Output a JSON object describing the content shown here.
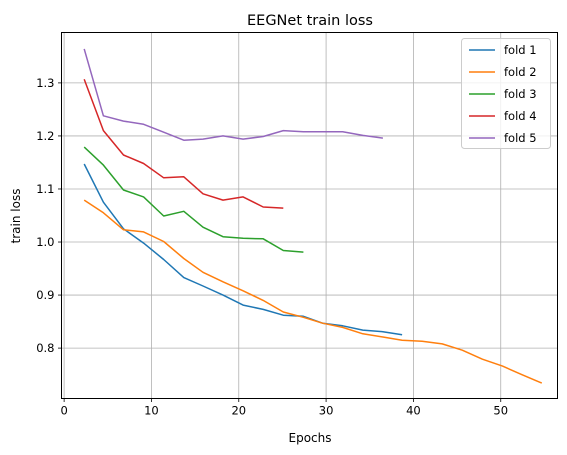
{
  "chart_data": {
    "type": "line",
    "title": "EEGNet train loss",
    "xlabel": "Epochs",
    "ylabel": "train loss",
    "xlim": [
      -0.3,
      56.5
    ],
    "ylim": [
      0.705,
      1.395
    ],
    "xticks": [
      0,
      10,
      20,
      30,
      40,
      50
    ],
    "xtick_labels": [
      "0",
      "10",
      "20",
      "30",
      "40",
      "50"
    ],
    "yticks": [
      0.8,
      0.9,
      1.0,
      1.1,
      1.2,
      1.3
    ],
    "ytick_labels": [
      "0.8",
      "0.9",
      "1.0",
      "1.1",
      "1.2",
      "1.3"
    ],
    "grid": true,
    "legend_position": "top-right",
    "series": [
      {
        "name": "fold 1",
        "color": "#1f77b4",
        "x": [
          2.3,
          4.5,
          6.8,
          9.1,
          11.4,
          13.7,
          15.9,
          18.2,
          20.5,
          22.8,
          25.1,
          27.4,
          29.6,
          31.9,
          34.2,
          36.5,
          38.7
        ],
        "y": [
          1.147,
          1.075,
          1.025,
          0.998,
          0.967,
          0.933,
          0.917,
          0.9,
          0.881,
          0.873,
          0.862,
          0.86,
          0.847,
          0.842,
          0.834,
          0.831,
          0.825
        ]
      },
      {
        "name": "fold 2",
        "color": "#ff7f0e",
        "x": [
          2.3,
          4.5,
          6.8,
          9.1,
          11.4,
          13.7,
          15.9,
          18.2,
          20.5,
          22.8,
          25.1,
          27.4,
          29.6,
          31.9,
          34.2,
          36.5,
          38.7,
          41.0,
          43.3,
          45.6,
          47.9,
          50.2,
          52.4,
          54.7
        ],
        "y": [
          1.079,
          1.055,
          1.023,
          1.019,
          1.001,
          0.969,
          0.943,
          0.925,
          0.908,
          0.89,
          0.868,
          0.858,
          0.847,
          0.839,
          0.827,
          0.821,
          0.815,
          0.813,
          0.808,
          0.796,
          0.779,
          0.766,
          0.75,
          0.734
        ]
      },
      {
        "name": "fold 3",
        "color": "#2ca02c",
        "x": [
          2.3,
          4.5,
          6.8,
          9.1,
          11.4,
          13.7,
          15.9,
          18.2,
          20.5,
          22.8,
          25.1,
          27.4
        ],
        "y": [
          1.179,
          1.145,
          1.098,
          1.085,
          1.049,
          1.058,
          1.028,
          1.01,
          1.007,
          1.006,
          0.984,
          0.981
        ]
      },
      {
        "name": "fold 4",
        "color": "#d62728",
        "x": [
          2.3,
          4.5,
          6.8,
          9.1,
          11.4,
          13.7,
          15.9,
          18.2,
          20.5,
          22.8,
          25.1
        ],
        "y": [
          1.307,
          1.21,
          1.164,
          1.148,
          1.121,
          1.123,
          1.091,
          1.079,
          1.085,
          1.066,
          1.064
        ]
      },
      {
        "name": "fold 5",
        "color": "#9467bd",
        "x": [
          2.3,
          4.5,
          6.8,
          9.1,
          11.4,
          13.7,
          15.9,
          18.2,
          20.5,
          22.8,
          25.1,
          27.4,
          29.6,
          31.9,
          34.2,
          36.5
        ],
        "y": [
          1.364,
          1.238,
          1.228,
          1.222,
          1.207,
          1.192,
          1.194,
          1.2,
          1.194,
          1.199,
          1.21,
          1.208,
          1.208,
          1.208,
          1.201,
          1.196
        ]
      }
    ]
  }
}
